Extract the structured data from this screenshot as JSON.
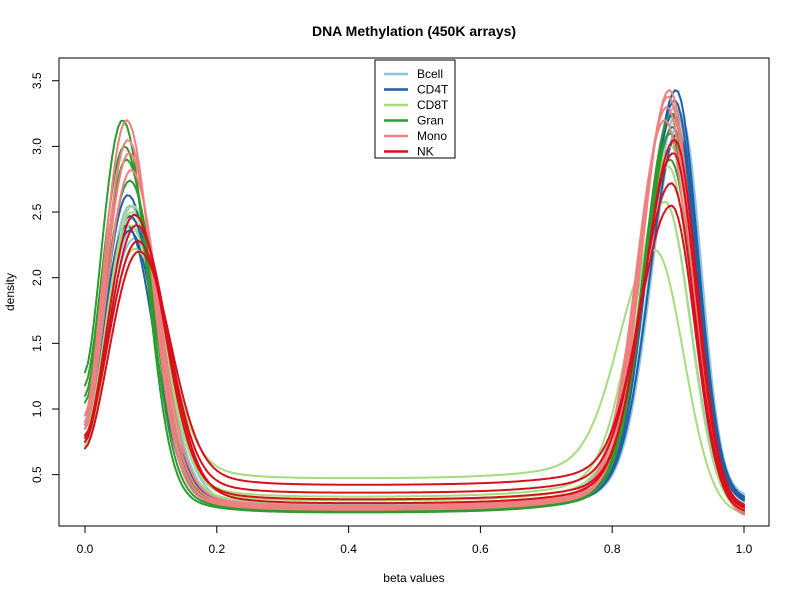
{
  "chart_data": {
    "type": "line",
    "title": "DNA Methylation (450K arrays)",
    "xlabel": "beta values",
    "ylabel": "density",
    "xlim": [
      0.0,
      1.0
    ],
    "ylim": [
      0.11,
      3.55
    ],
    "x_ticks": [
      0.0,
      0.2,
      0.4,
      0.6,
      0.8,
      1.0
    ],
    "x_tick_labels": [
      "0.0",
      "0.2",
      "0.4",
      "0.6",
      "0.8",
      "1.0"
    ],
    "y_ticks": [
      0.5,
      1.0,
      1.5,
      2.0,
      2.5,
      3.0,
      3.5
    ],
    "y_tick_labels": [
      "0.5",
      "1.0",
      "1.5",
      "2.0",
      "2.5",
      "3.0",
      "3.5"
    ],
    "grid": false,
    "legend_position": "top-center",
    "legend": [
      {
        "name": "Bcell",
        "color": "#8fc3de"
      },
      {
        "name": "CD4T",
        "color": "#1f5fa6"
      },
      {
        "name": "CD8T",
        "color": "#a6dc7e"
      },
      {
        "name": "Gran",
        "color": "#2e9b2e"
      },
      {
        "name": "Mono",
        "color": "#f08080"
      },
      {
        "name": "NK",
        "color": "#d8101c"
      }
    ],
    "series": [
      {
        "group": "Bcell",
        "color": "#8fc3de",
        "start": 0.75,
        "p1x": 0.068,
        "p1y": 2.55,
        "w1": 0.04,
        "valley": 0.26,
        "p2x": 0.9,
        "p2y": 3.28,
        "w2": 0.04,
        "end": 0.33
      },
      {
        "group": "Bcell",
        "color": "#8fc3de",
        "start": 0.85,
        "p1x": 0.072,
        "p1y": 2.38,
        "w1": 0.042,
        "valley": 0.24,
        "p2x": 0.905,
        "p2y": 3.22,
        "w2": 0.042,
        "end": 0.3
      },
      {
        "group": "Bcell",
        "color": "#8fc3de",
        "start": 0.8,
        "p1x": 0.07,
        "p1y": 2.45,
        "w1": 0.041,
        "valley": 0.27,
        "p2x": 0.895,
        "p2y": 3.3,
        "w2": 0.041,
        "end": 0.31
      },
      {
        "group": "Bcell",
        "color": "#8fc3de",
        "start": 0.9,
        "p1x": 0.075,
        "p1y": 2.3,
        "w1": 0.043,
        "valley": 0.25,
        "p2x": 0.88,
        "p2y": 2.58,
        "w2": 0.045,
        "end": 0.27
      },
      {
        "group": "CD4T",
        "color": "#1f5fa6",
        "start": 0.85,
        "p1x": 0.065,
        "p1y": 2.63,
        "w1": 0.039,
        "valley": 0.23,
        "p2x": 0.897,
        "p2y": 3.43,
        "w2": 0.04,
        "end": 0.31
      },
      {
        "group": "CD4T",
        "color": "#1f5fa6",
        "start": 0.95,
        "p1x": 0.068,
        "p1y": 2.47,
        "w1": 0.04,
        "valley": 0.25,
        "p2x": 0.895,
        "p2y": 3.35,
        "w2": 0.041,
        "end": 0.29
      },
      {
        "group": "CD4T",
        "color": "#1f5fa6",
        "start": 0.9,
        "p1x": 0.063,
        "p1y": 2.4,
        "w1": 0.039,
        "valley": 0.22,
        "p2x": 0.893,
        "p2y": 3.25,
        "w2": 0.04,
        "end": 0.28
      },
      {
        "group": "CD4T",
        "color": "#1f5fa6",
        "start": 0.88,
        "p1x": 0.067,
        "p1y": 2.36,
        "w1": 0.04,
        "valley": 0.24,
        "p2x": 0.9,
        "p2y": 3.1,
        "w2": 0.041,
        "end": 0.3
      },
      {
        "group": "CD8T",
        "color": "#a6dc7e",
        "start": 0.72,
        "p1x": 0.075,
        "p1y": 2.22,
        "w1": 0.045,
        "valley": 0.47,
        "p2x": 0.865,
        "p2y": 2.21,
        "w2": 0.05,
        "end": 0.19
      },
      {
        "group": "CD8T",
        "color": "#a6dc7e",
        "start": 0.78,
        "p1x": 0.07,
        "p1y": 2.5,
        "w1": 0.042,
        "valley": 0.33,
        "p2x": 0.88,
        "p2y": 2.58,
        "w2": 0.046,
        "end": 0.21
      },
      {
        "group": "CD8T",
        "color": "#a6dc7e",
        "start": 0.75,
        "p1x": 0.072,
        "p1y": 2.55,
        "w1": 0.042,
        "valley": 0.3,
        "p2x": 0.885,
        "p2y": 2.85,
        "w2": 0.044,
        "end": 0.23
      },
      {
        "group": "CD8T",
        "color": "#a6dc7e",
        "start": 0.8,
        "p1x": 0.068,
        "p1y": 2.4,
        "w1": 0.041,
        "valley": 0.28,
        "p2x": 0.89,
        "p2y": 3.0,
        "w2": 0.043,
        "end": 0.25
      },
      {
        "group": "Gran",
        "color": "#2e9b2e",
        "start": 1.28,
        "p1x": 0.057,
        "p1y": 3.2,
        "w1": 0.035,
        "valley": 0.21,
        "p2x": 0.888,
        "p2y": 3.1,
        "w2": 0.04,
        "end": 0.18
      },
      {
        "group": "Gran",
        "color": "#2e9b2e",
        "start": 1.18,
        "p1x": 0.06,
        "p1y": 3.0,
        "w1": 0.036,
        "valley": 0.22,
        "p2x": 0.89,
        "p2y": 3.25,
        "w2": 0.04,
        "end": 0.2
      },
      {
        "group": "Gran",
        "color": "#2e9b2e",
        "start": 1.1,
        "p1x": 0.063,
        "p1y": 2.9,
        "w1": 0.037,
        "valley": 0.23,
        "p2x": 0.892,
        "p2y": 3.15,
        "w2": 0.04,
        "end": 0.22
      },
      {
        "group": "Gran",
        "color": "#2e9b2e",
        "start": 1.05,
        "p1x": 0.068,
        "p1y": 2.74,
        "w1": 0.038,
        "valley": 0.24,
        "p2x": 0.888,
        "p2y": 2.9,
        "w2": 0.041,
        "end": 0.24
      },
      {
        "group": "Mono",
        "color": "#f08080",
        "start": 0.95,
        "p1x": 0.063,
        "p1y": 3.2,
        "w1": 0.036,
        "valley": 0.23,
        "p2x": 0.887,
        "p2y": 3.43,
        "w2": 0.04,
        "end": 0.17
      },
      {
        "group": "Mono",
        "color": "#f08080",
        "start": 0.9,
        "p1x": 0.065,
        "p1y": 3.05,
        "w1": 0.037,
        "valley": 0.24,
        "p2x": 0.885,
        "p2y": 3.38,
        "w2": 0.04,
        "end": 0.19
      },
      {
        "group": "Mono",
        "color": "#f08080",
        "start": 0.88,
        "p1x": 0.067,
        "p1y": 2.95,
        "w1": 0.038,
        "valley": 0.25,
        "p2x": 0.883,
        "p2y": 3.3,
        "w2": 0.041,
        "end": 0.2
      },
      {
        "group": "Mono",
        "color": "#f08080",
        "start": 0.85,
        "p1x": 0.07,
        "p1y": 2.82,
        "w1": 0.039,
        "valley": 0.26,
        "p2x": 0.88,
        "p2y": 3.2,
        "w2": 0.041,
        "end": 0.21
      },
      {
        "group": "NK",
        "color": "#d8101c",
        "start": 0.7,
        "p1x": 0.082,
        "p1y": 2.2,
        "w1": 0.044,
        "valley": 0.42,
        "p2x": 0.89,
        "p2y": 2.55,
        "w2": 0.045,
        "end": 0.21
      },
      {
        "group": "NK",
        "color": "#d8101c",
        "start": 0.75,
        "p1x": 0.078,
        "p1y": 2.4,
        "w1": 0.043,
        "valley": 0.36,
        "p2x": 0.89,
        "p2y": 2.72,
        "w2": 0.044,
        "end": 0.23
      },
      {
        "group": "NK",
        "color": "#d8101c",
        "start": 0.78,
        "p1x": 0.075,
        "p1y": 2.48,
        "w1": 0.042,
        "valley": 0.31,
        "p2x": 0.895,
        "p2y": 3.05,
        "w2": 0.043,
        "end": 0.25
      },
      {
        "group": "NK",
        "color": "#d8101c",
        "start": 0.8,
        "p1x": 0.08,
        "p1y": 2.28,
        "w1": 0.043,
        "valley": 0.28,
        "p2x": 0.893,
        "p2y": 2.95,
        "w2": 0.043,
        "end": 0.24
      }
    ]
  }
}
